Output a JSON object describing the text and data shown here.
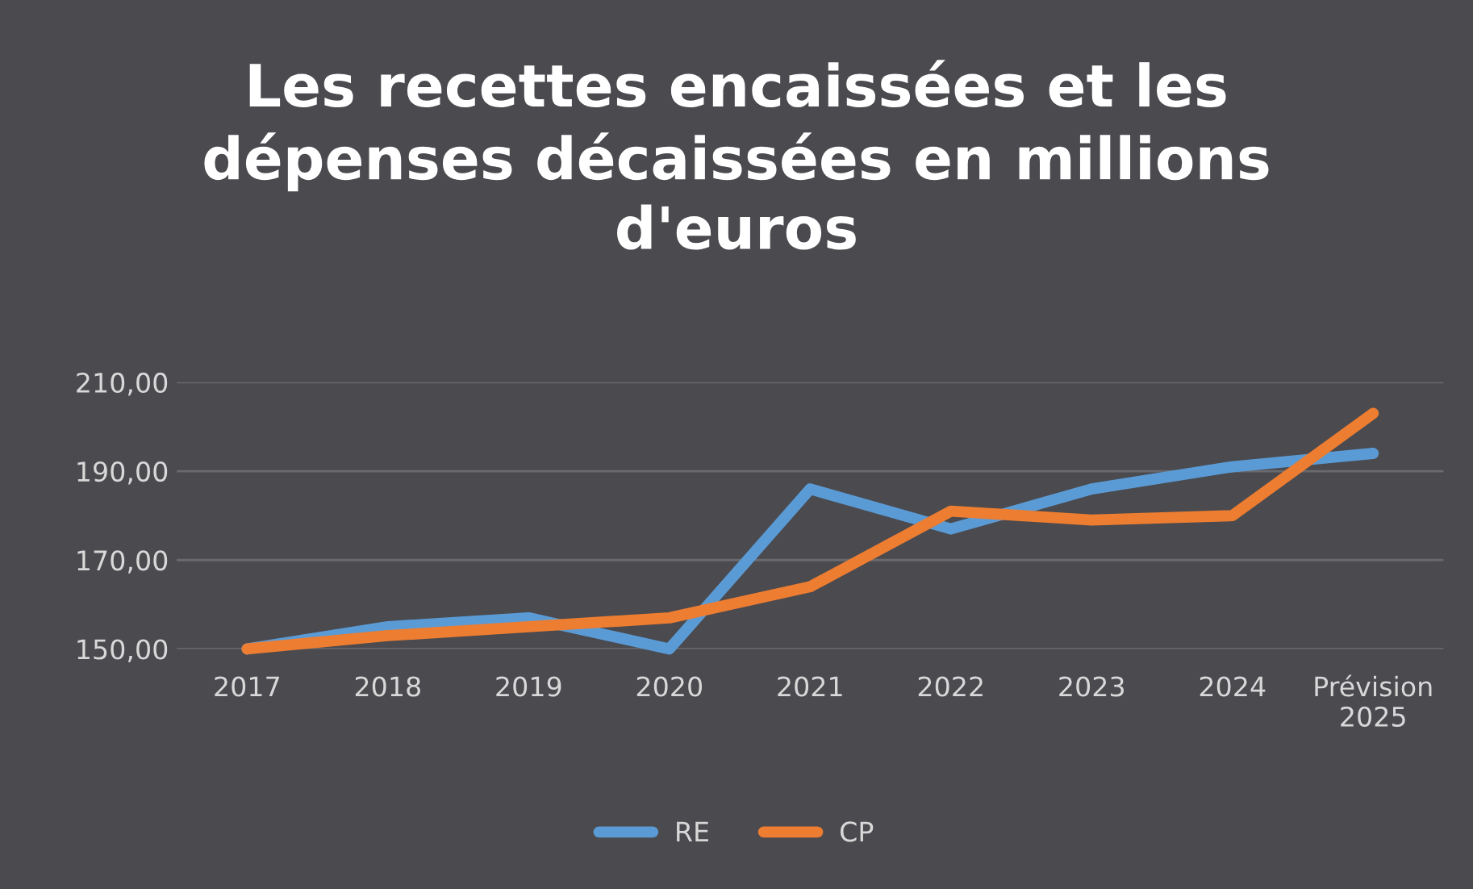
{
  "chart_data": {
    "type": "line",
    "title": "Les recettes encaissées et les\ndépenses décaissées en millions\nd'euros",
    "categories": [
      "2017",
      "2018",
      "2019",
      "2020",
      "2021",
      "2022",
      "2023",
      "2024",
      "Prévision\n2025"
    ],
    "series": [
      {
        "name": "RE",
        "color": "#5b9bd5",
        "values": [
          150,
          155,
          157,
          150,
          186,
          177,
          186,
          191,
          194
        ]
      },
      {
        "name": "CP",
        "color": "#ed7d31",
        "values": [
          150,
          153,
          155,
          157,
          164,
          181,
          179,
          180,
          203
        ]
      }
    ],
    "ylim": [
      150,
      210
    ],
    "yticks": [
      {
        "value": 150,
        "label": "150,00"
      },
      {
        "value": 170,
        "label": "170,00"
      },
      {
        "value": 190,
        "label": "190,00"
      },
      {
        "value": 210,
        "label": "210,00"
      }
    ],
    "grid": "y",
    "legend": "bottom",
    "marker": "none",
    "line_style": "solid"
  }
}
